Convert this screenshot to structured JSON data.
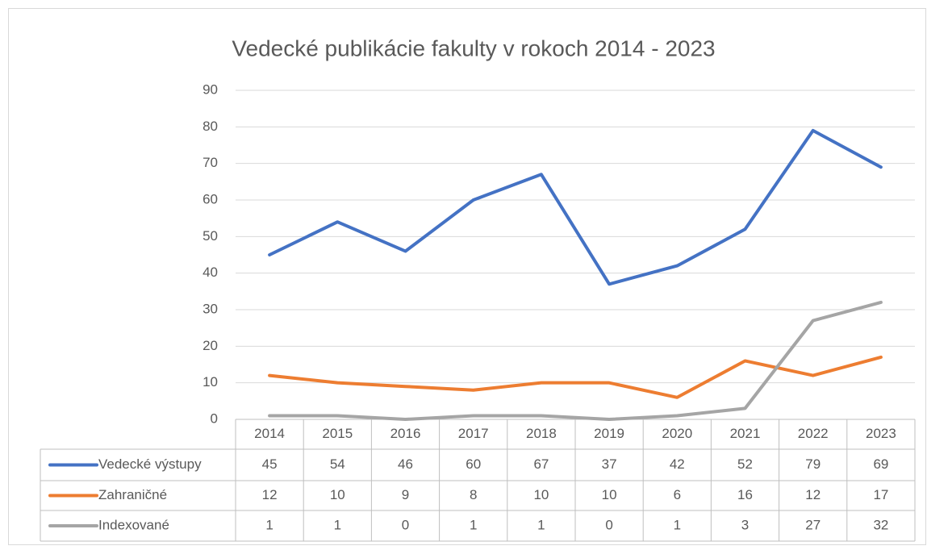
{
  "chart_data": {
    "type": "line",
    "title": "Vedecké publikácie fakulty v rokoch 2014 - 2023",
    "categories": [
      "2014",
      "2015",
      "2016",
      "2017",
      "2018",
      "2019",
      "2020",
      "2021",
      "2022",
      "2023"
    ],
    "series": [
      {
        "name": "Vedecké výstupy",
        "color": "#4472c4",
        "values": [
          45,
          54,
          46,
          60,
          67,
          37,
          42,
          52,
          79,
          69
        ]
      },
      {
        "name": "Zahraničné",
        "color": "#ed7d31",
        "values": [
          12,
          10,
          9,
          8,
          10,
          10,
          6,
          16,
          12,
          17
        ]
      },
      {
        "name": "Indexované",
        "color": "#a5a5a5",
        "values": [
          1,
          1,
          0,
          1,
          1,
          0,
          1,
          3,
          27,
          32
        ]
      }
    ],
    "ylim": [
      0,
      90
    ],
    "yticks": [
      0,
      10,
      20,
      30,
      40,
      50,
      60,
      70,
      80,
      90
    ],
    "grid": true
  }
}
